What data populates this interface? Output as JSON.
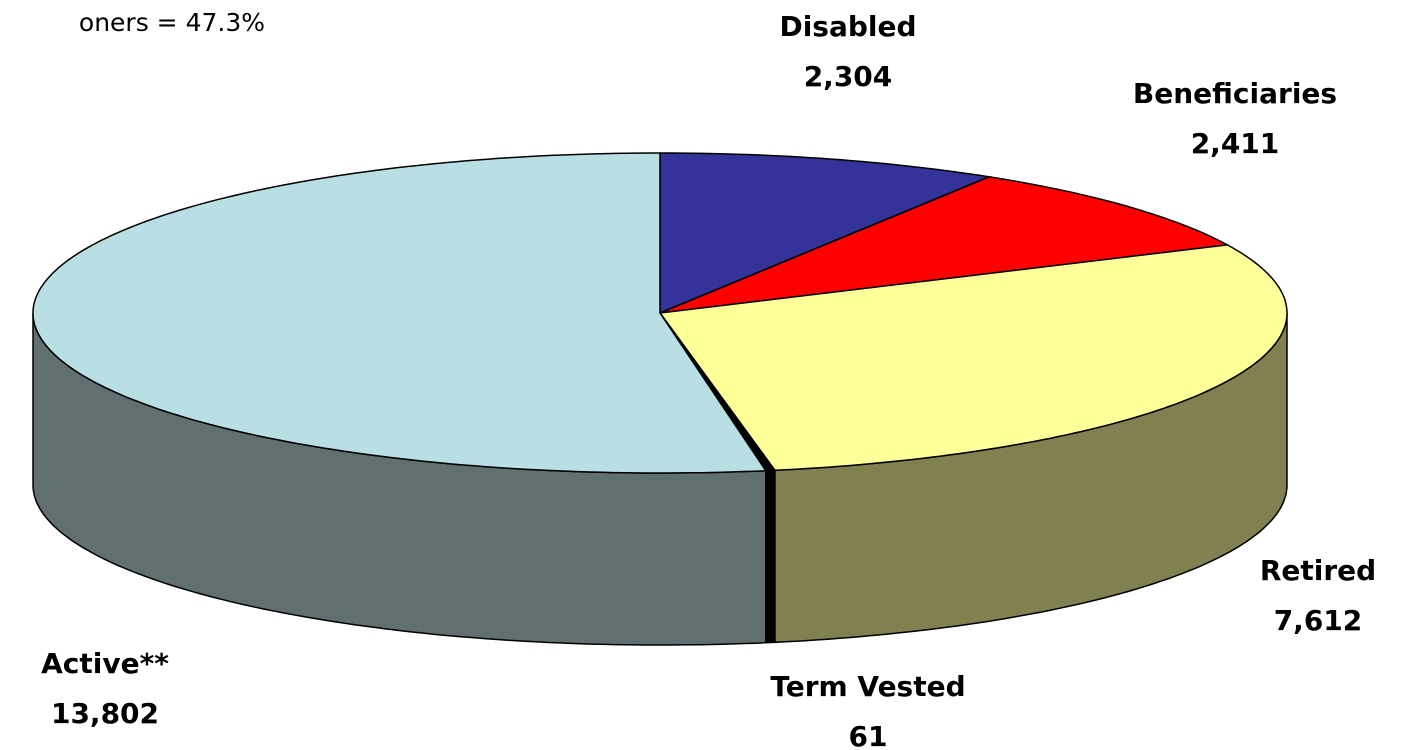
{
  "chart_data": {
    "type": "pie3d",
    "note": "oners = 47.3%",
    "categories": [
      "Disabled",
      "Beneficiaries",
      "Retired",
      "Term Vested",
      "Active**"
    ],
    "values": [
      2304,
      2411,
      7612,
      61,
      13802
    ],
    "value_labels": [
      "2,304",
      "2,411",
      "7,612",
      "61",
      "13,802"
    ],
    "colors": [
      "#333399",
      "#ff0000",
      "#ffff99",
      "#000000",
      "#b8e0e4"
    ],
    "side_colors": [
      "#1f1f5c",
      "#990000",
      "#808050",
      "#000000",
      "#607070"
    ]
  }
}
